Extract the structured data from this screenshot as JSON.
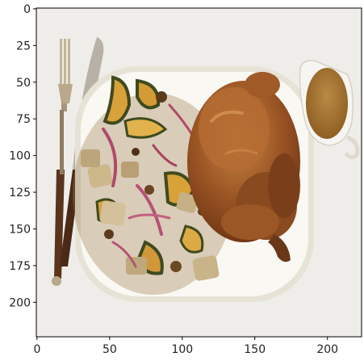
{
  "figure": {
    "image_subject": "roast-chicken-dinner-plate",
    "x_tick_labels": [
      "0",
      "50",
      "100",
      "150",
      "200"
    ],
    "y_tick_labels": [
      "0",
      "25",
      "50",
      "75",
      "100",
      "125",
      "150",
      "175",
      "200"
    ],
    "x_ticks": [
      0,
      50,
      100,
      150,
      200
    ],
    "y_ticks": [
      0,
      25,
      50,
      75,
      100,
      125,
      150,
      175,
      200
    ],
    "extent": {
      "x": [
        -0.5,
        223.5
      ],
      "y": [
        223.5,
        -0.5
      ]
    },
    "colors": {
      "tablecloth": "#efedea",
      "platter": "#faf8f3",
      "platter_rim": "#e7e2d6",
      "chicken": "#8e4a1f",
      "chicken_highlight": "#c2793d",
      "gravy": "#b07a33",
      "squash": "#d9a13a",
      "squash_skin": "#3f4a1e",
      "onion": "#b04a6a",
      "bread": "#c9b48a",
      "fork": "#b9a88a",
      "knife_handle": "#4a2a17"
    }
  }
}
